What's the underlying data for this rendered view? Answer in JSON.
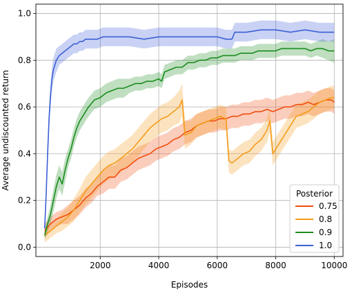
{
  "chart_data": {
    "type": "line",
    "xlabel": "Episodes",
    "ylabel": "Average undiscounted return",
    "xlim": [
      -200,
      10300
    ],
    "ylim": [
      -0.04,
      1.04
    ],
    "x_ticks": [
      2000,
      4000,
      6000,
      8000,
      10000
    ],
    "y_ticks": [
      0.0,
      0.2,
      0.4,
      0.6,
      0.8,
      1.0
    ],
    "y_tick_labels": [
      "0.0",
      "0.2",
      "0.4",
      "0.6",
      "0.8",
      "1.0"
    ],
    "grid": true,
    "legend": {
      "title": "Posterior",
      "placement": "lower-right"
    },
    "series": [
      {
        "name": "0.75",
        "color": "#f14d0f",
        "x": [
          100,
          300,
          500,
          700,
          900,
          1100,
          1300,
          1500,
          1700,
          1900,
          2100,
          2300,
          2500,
          2700,
          2900,
          3100,
          3300,
          3500,
          3700,
          3900,
          4100,
          4300,
          4500,
          4700,
          4900,
          5100,
          5300,
          5500,
          5700,
          5900,
          6100,
          6300,
          6500,
          6700,
          6900,
          7100,
          7300,
          7500,
          7700,
          7900,
          8100,
          8300,
          8500,
          8700,
          8900,
          9100,
          9300,
          9500,
          9700,
          9900,
          10000
        ],
        "y": [
          0.07,
          0.1,
          0.12,
          0.13,
          0.14,
          0.16,
          0.18,
          0.21,
          0.23,
          0.26,
          0.28,
          0.3,
          0.3,
          0.33,
          0.34,
          0.36,
          0.38,
          0.39,
          0.4,
          0.42,
          0.43,
          0.44,
          0.46,
          0.47,
          0.49,
          0.5,
          0.52,
          0.53,
          0.54,
          0.54,
          0.55,
          0.55,
          0.56,
          0.56,
          0.57,
          0.57,
          0.58,
          0.58,
          0.59,
          0.58,
          0.59,
          0.6,
          0.6,
          0.61,
          0.61,
          0.62,
          0.61,
          0.62,
          0.63,
          0.63,
          0.62
        ],
        "band": [
          0.03,
          0.03,
          0.03,
          0.03,
          0.04,
          0.04,
          0.04,
          0.04,
          0.04,
          0.04,
          0.05,
          0.05,
          0.05,
          0.05,
          0.05,
          0.05,
          0.05,
          0.05,
          0.05,
          0.05,
          0.05,
          0.05,
          0.05,
          0.05,
          0.05,
          0.05,
          0.05,
          0.05,
          0.05,
          0.05,
          0.05,
          0.05,
          0.05,
          0.05,
          0.05,
          0.05,
          0.05,
          0.05,
          0.05,
          0.05,
          0.05,
          0.05,
          0.05,
          0.05,
          0.05,
          0.05,
          0.05,
          0.05,
          0.05,
          0.05,
          0.05
        ]
      },
      {
        "name": "0.8",
        "color": "#f49c1a",
        "x": [
          100,
          300,
          500,
          700,
          900,
          1100,
          1300,
          1500,
          1700,
          1900,
          2100,
          2300,
          2500,
          2700,
          2900,
          3100,
          3300,
          3500,
          3700,
          3900,
          4100,
          4300,
          4500,
          4700,
          4800,
          4900,
          5100,
          5300,
          5500,
          5700,
          5900,
          6100,
          6300,
          6400,
          6500,
          6700,
          6900,
          7100,
          7300,
          7500,
          7700,
          7800,
          7900,
          8100,
          8300,
          8500,
          8700,
          8900,
          9100,
          9300,
          9500,
          9700,
          9900,
          10000
        ],
        "y": [
          0.05,
          0.07,
          0.09,
          0.11,
          0.13,
          0.16,
          0.2,
          0.24,
          0.27,
          0.3,
          0.33,
          0.35,
          0.36,
          0.38,
          0.4,
          0.42,
          0.45,
          0.48,
          0.51,
          0.53,
          0.55,
          0.56,
          0.58,
          0.6,
          0.63,
          0.48,
          0.49,
          0.52,
          0.53,
          0.54,
          0.55,
          0.56,
          0.55,
          0.37,
          0.36,
          0.38,
          0.4,
          0.41,
          0.44,
          0.46,
          0.5,
          0.54,
          0.4,
          0.44,
          0.48,
          0.52,
          0.56,
          0.57,
          0.58,
          0.6,
          0.62,
          0.63,
          0.64,
          0.64
        ],
        "band": [
          0.03,
          0.03,
          0.03,
          0.04,
          0.04,
          0.05,
          0.05,
          0.06,
          0.06,
          0.06,
          0.06,
          0.06,
          0.06,
          0.06,
          0.06,
          0.06,
          0.06,
          0.06,
          0.06,
          0.06,
          0.06,
          0.06,
          0.06,
          0.07,
          0.07,
          0.06,
          0.05,
          0.05,
          0.05,
          0.05,
          0.05,
          0.05,
          0.05,
          0.05,
          0.05,
          0.05,
          0.05,
          0.05,
          0.05,
          0.05,
          0.05,
          0.05,
          0.05,
          0.05,
          0.05,
          0.05,
          0.05,
          0.05,
          0.05,
          0.05,
          0.05,
          0.05,
          0.05,
          0.05
        ]
      },
      {
        "name": "0.9",
        "color": "#1a8c1e",
        "x": [
          100,
          200,
          300,
          400,
          500,
          600,
          700,
          800,
          900,
          1000,
          1100,
          1200,
          1300,
          1400,
          1500,
          1600,
          1800,
          2000,
          2200,
          2400,
          2600,
          2800,
          3000,
          3200,
          3400,
          3600,
          3800,
          4000,
          4100,
          4200,
          4400,
          4600,
          4800,
          5000,
          5200,
          5400,
          5600,
          5800,
          6000,
          6200,
          6400,
          6600,
          6800,
          7000,
          7200,
          7400,
          7600,
          7800,
          8000,
          8200,
          8400,
          8600,
          8800,
          9000,
          9200,
          9400,
          9600,
          9800,
          10000
        ],
        "y": [
          0.05,
          0.1,
          0.14,
          0.2,
          0.26,
          0.3,
          0.27,
          0.33,
          0.38,
          0.42,
          0.47,
          0.51,
          0.54,
          0.56,
          0.58,
          0.6,
          0.63,
          0.64,
          0.66,
          0.67,
          0.68,
          0.68,
          0.69,
          0.7,
          0.7,
          0.71,
          0.71,
          0.72,
          0.71,
          0.75,
          0.76,
          0.77,
          0.77,
          0.79,
          0.79,
          0.8,
          0.8,
          0.81,
          0.81,
          0.82,
          0.82,
          0.82,
          0.83,
          0.83,
          0.83,
          0.84,
          0.84,
          0.84,
          0.84,
          0.85,
          0.85,
          0.85,
          0.85,
          0.85,
          0.84,
          0.85,
          0.85,
          0.84,
          0.84
        ],
        "band": [
          0.02,
          0.03,
          0.04,
          0.05,
          0.05,
          0.05,
          0.05,
          0.05,
          0.04,
          0.04,
          0.04,
          0.04,
          0.04,
          0.04,
          0.04,
          0.04,
          0.04,
          0.04,
          0.04,
          0.04,
          0.04,
          0.04,
          0.03,
          0.03,
          0.03,
          0.03,
          0.03,
          0.03,
          0.03,
          0.03,
          0.03,
          0.03,
          0.03,
          0.03,
          0.03,
          0.03,
          0.03,
          0.03,
          0.03,
          0.03,
          0.03,
          0.03,
          0.03,
          0.03,
          0.03,
          0.03,
          0.03,
          0.03,
          0.03,
          0.03,
          0.03,
          0.03,
          0.03,
          0.03,
          0.03,
          0.03,
          0.04,
          0.04,
          0.05
        ]
      },
      {
        "name": "1.0",
        "color": "#3c5fd6",
        "x": [
          100,
          150,
          200,
          250,
          300,
          350,
          400,
          500,
          600,
          700,
          800,
          900,
          1000,
          1100,
          1200,
          1300,
          1400,
          1500,
          1700,
          1900,
          2100,
          2500,
          3000,
          3500,
          4000,
          4500,
          5000,
          5500,
          6000,
          6300,
          6500,
          6600,
          6800,
          7000,
          7500,
          8000,
          8500,
          9000,
          9500,
          10000
        ],
        "y": [
          0.08,
          0.22,
          0.4,
          0.55,
          0.65,
          0.72,
          0.76,
          0.8,
          0.82,
          0.83,
          0.84,
          0.85,
          0.86,
          0.87,
          0.87,
          0.88,
          0.88,
          0.89,
          0.89,
          0.89,
          0.9,
          0.9,
          0.9,
          0.89,
          0.9,
          0.9,
          0.9,
          0.9,
          0.9,
          0.89,
          0.89,
          0.92,
          0.92,
          0.92,
          0.93,
          0.93,
          0.92,
          0.93,
          0.92,
          0.92
        ],
        "band": [
          0.02,
          0.04,
          0.05,
          0.05,
          0.05,
          0.05,
          0.05,
          0.05,
          0.04,
          0.04,
          0.04,
          0.04,
          0.04,
          0.04,
          0.04,
          0.04,
          0.04,
          0.04,
          0.04,
          0.04,
          0.04,
          0.04,
          0.04,
          0.04,
          0.04,
          0.04,
          0.04,
          0.04,
          0.04,
          0.04,
          0.04,
          0.04,
          0.04,
          0.04,
          0.04,
          0.04,
          0.04,
          0.04,
          0.04,
          0.04
        ]
      }
    ]
  }
}
